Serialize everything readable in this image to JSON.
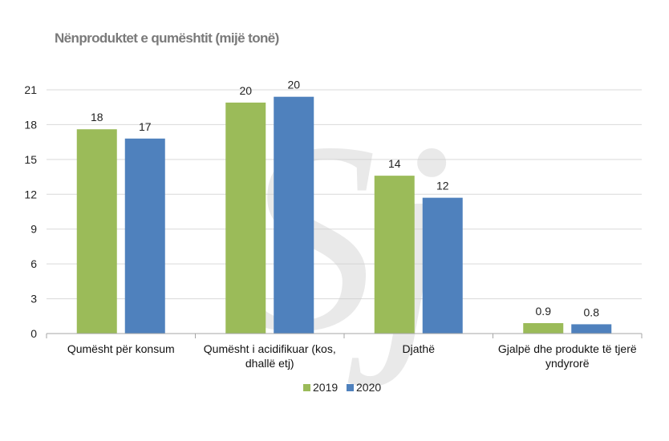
{
  "chart_data": {
    "type": "bar",
    "title": "Nënproduktet e qumështit (mijë tonë)",
    "xlabel": "",
    "ylabel": "",
    "ylim": [
      0,
      21
    ],
    "yticks": [
      "0",
      "3",
      "6",
      "9",
      "12",
      "15",
      "18",
      "21"
    ],
    "categories": [
      [
        "Qumësht për konsum"
      ],
      [
        "Qumësht i acidifikuar (kos,",
        "dhallë etj)"
      ],
      [
        "Djathë"
      ],
      [
        "Gjalpë dhe produkte të tjerë",
        "yndyrorë"
      ]
    ],
    "series": [
      {
        "name": "2019",
        "color": "#9bbb59",
        "values": [
          17.6,
          19.9,
          13.6,
          0.9
        ],
        "labels": [
          "18",
          "20",
          "14",
          "0.9"
        ]
      },
      {
        "name": "2020",
        "color": "#4f81bd",
        "values": [
          16.8,
          20.4,
          11.7,
          0.8
        ],
        "labels": [
          "17",
          "20",
          "12",
          "0.8"
        ]
      }
    ],
    "grid": true,
    "legend_position": "bottom"
  },
  "watermark": {
    "text": "Sj",
    "color": "#cfcfcf"
  }
}
